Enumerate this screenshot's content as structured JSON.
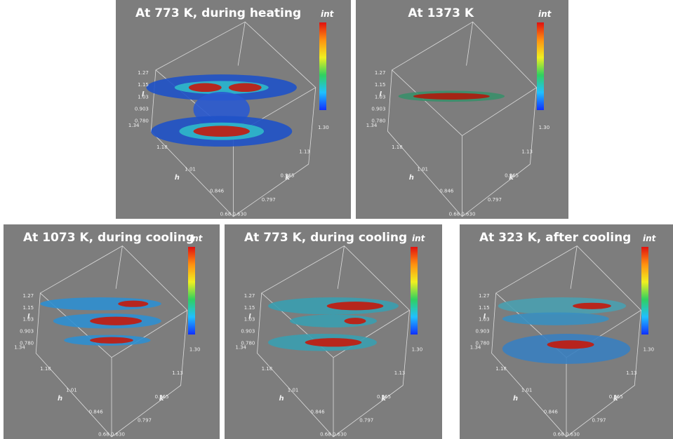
{
  "panels": [
    {
      "title": "At 773 K, during heating",
      "legend_title": "int"
    },
    {
      "title": "At 1373 K",
      "legend_title": "int"
    },
    {
      "title": "At 1073 K, during cooling",
      "legend_title": "int"
    },
    {
      "title": "At 773 K, during cooling",
      "legend_title": "int"
    },
    {
      "title": "At 323 K, after cooling",
      "legend_title": "int"
    }
  ],
  "axes": {
    "l_label": "l",
    "l_ticks": [
      "1.27",
      "1.15",
      "1.03",
      "0.903",
      "0.780"
    ],
    "h_label": "h",
    "h_ticks": [
      "1.34",
      "1.18",
      "1.01",
      "0.846"
    ],
    "k_label": "k",
    "k_ticks": [
      "0.797",
      "0.965",
      "1.13",
      "1.30"
    ],
    "corner": "0.68 0.630"
  }
}
